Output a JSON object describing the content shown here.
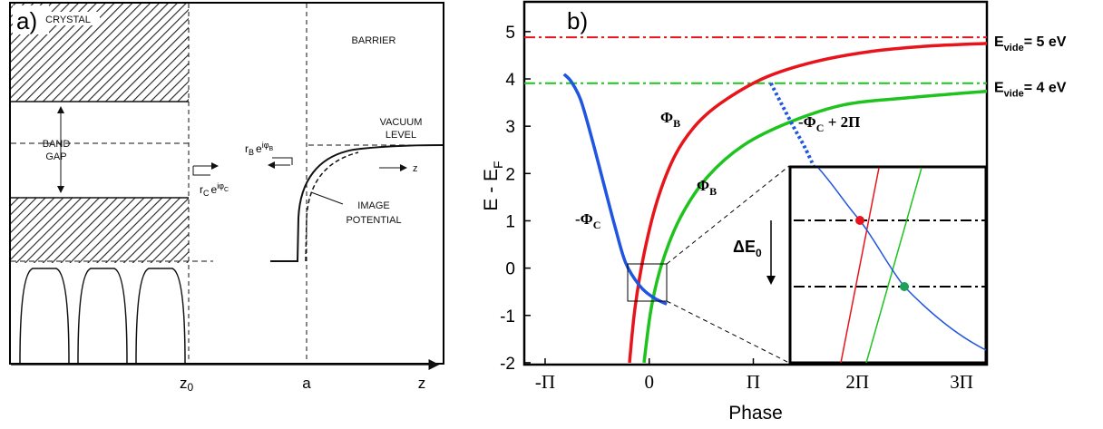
{
  "panel_a": {
    "label": "a)",
    "crystal": "CRYSTAL",
    "barrier": "BARRIER",
    "band_gap": [
      "BAND",
      "GAP"
    ],
    "vacuum_level": [
      "VACUUM",
      "LEVEL"
    ],
    "image_potential": [
      "IMAGE",
      "POTENTIAL"
    ],
    "r_c": {
      "r": "r",
      "r_sub": "C",
      "e": "e",
      "exp": "iφ",
      "exp_sub": "C"
    },
    "r_b": {
      "r": "r",
      "r_sub": "B",
      "e": "e",
      "exp": "iφ",
      "exp_sub": "B"
    },
    "z_arrow": "z",
    "axis_labels": {
      "z0": {
        "main": "z",
        "sub": "0"
      },
      "a": "a",
      "z": "z"
    }
  },
  "chart_data": {
    "type": "line",
    "panel_label": "b)",
    "xlabel": "Phase",
    "ylabel": {
      "main": "E - E",
      "sub": "F"
    },
    "xlim": [
      -3.77,
      10.19
    ],
    "ylim": [
      -2.04,
      5.63
    ],
    "xticks": [
      {
        "value": -3.1416,
        "label": "-Π"
      },
      0,
      {
        "value": 3.1416,
        "label": "Π"
      },
      {
        "value": 6.2832,
        "label": "2Π"
      },
      {
        "value": 9.4248,
        "label": "3Π"
      }
    ],
    "yticks": [
      -2,
      -1,
      0,
      1,
      2,
      3,
      4,
      5
    ],
    "series": [
      {
        "color": "#e8141b",
        "style": "solid",
        "x": [
          -0.595,
          -0.43,
          -0.157,
          0.252,
          0.8,
          1.48,
          2.31,
          3.54,
          5.04,
          6.69,
          8.33,
          10.19
        ],
        "values": [
          -2,
          -0.85,
          0.3,
          1.45,
          2.41,
          3.08,
          3.56,
          4.04,
          4.37,
          4.58,
          4.69,
          4.75
        ]
      },
      {
        "color": "#1ec31e",
        "style": "solid",
        "x": [
          -0.157,
          0.06,
          0.39,
          0.94,
          1.76,
          2.85,
          4.22,
          5.86,
          7.78,
          10.19
        ],
        "values": [
          -2,
          -0.85,
          0.11,
          1.07,
          1.93,
          2.6,
          3.08,
          3.45,
          3.6,
          3.74
        ]
      },
      {
        "color": "#1f55e0",
        "style": "solid",
        "x": [
          -2.57,
          -2.35,
          -2.07,
          -1.75,
          -1.39,
          -1.03,
          -0.71,
          -0.29,
          0.12,
          0.53
        ],
        "values": [
          4.1,
          3.94,
          3.56,
          2.79,
          1.83,
          0.87,
          0.11,
          -0.37,
          -0.62,
          -0.76
        ]
      },
      {
        "color": "#1f55e0",
        "style": "dotted",
        "x": [
          3.67,
          4.0,
          4.36,
          4.69,
          4.96
        ],
        "values": [
          3.91,
          3.46,
          2.98,
          2.56,
          2.16
        ]
      }
    ],
    "reference_lines": [
      {
        "value": 4.88,
        "color": "#e8141b",
        "label": {
          "main": "E",
          "sub": "vide",
          "rest": "= 5 eV"
        }
      },
      {
        "value": 3.91,
        "color": "#1ec31e",
        "label": {
          "main": "E",
          "sub": "vide",
          "rest": "= 4 eV"
        }
      }
    ],
    "annotations": [
      {
        "main": "Φ",
        "sub": "B"
      },
      {
        "main": "Φ",
        "sub": "B"
      },
      {
        "main": "-Φ",
        "sub": "C"
      },
      {
        "main": "-Φ",
        "sub": "C",
        "rest": " + 2Π"
      }
    ],
    "inset_label": {
      "main": "ΔE",
      "sub": "0"
    }
  }
}
